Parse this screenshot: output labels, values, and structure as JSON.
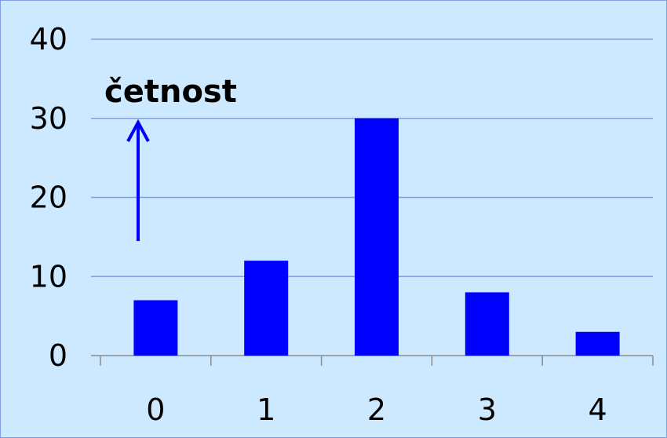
{
  "chart_data": {
    "type": "bar",
    "categories": [
      "0",
      "1",
      "2",
      "3",
      "4"
    ],
    "values": [
      7,
      12,
      30,
      8,
      3
    ],
    "title": "",
    "xlabel": "",
    "ylabel": "četnost",
    "ylim": [
      0,
      40
    ],
    "yticks": [
      "0",
      "10",
      "20",
      "30",
      "40"
    ],
    "grid": "horizontal",
    "legend": "none"
  },
  "colors": {
    "background": "#cce9ff",
    "bar": "#0000ff",
    "gridline": "#7f9fe0",
    "axis": "#8c8c8c",
    "arrow": "#0000ff"
  }
}
